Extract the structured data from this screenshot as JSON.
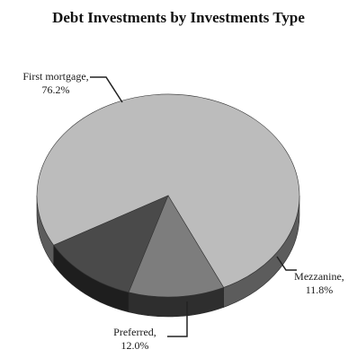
{
  "chart_data": {
    "type": "pie",
    "title": "Debt Investments by Investments Type",
    "categories": [
      "First mortgage,",
      "Mezzanine,",
      "Preferred,"
    ],
    "values": [
      76.2,
      11.8,
      12.0
    ],
    "value_labels": [
      "76.2%",
      "11.8%",
      "12.0%"
    ],
    "three_d": true,
    "colors": {
      "First mortgage,": {
        "top": "#bcbcbc",
        "side": "#5c5c5c"
      },
      "Mezzanine,": {
        "top": "#7d7d7d",
        "side": "#2e2e2e"
      },
      "Preferred,": {
        "top": "#4a4a4a",
        "side": "#1e1e1e"
      }
    }
  }
}
